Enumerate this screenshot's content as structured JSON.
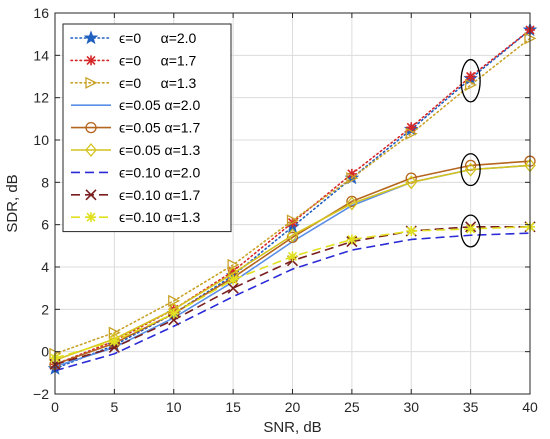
{
  "chart_data": {
    "type": "line",
    "title": "",
    "xlabel": "SNR, dB",
    "ylabel": "SDR, dB",
    "xlim": [
      0,
      40
    ],
    "ylim": [
      -2,
      16
    ],
    "x_ticks": [
      0,
      5,
      10,
      15,
      20,
      25,
      30,
      35,
      40
    ],
    "y_ticks": [
      -2,
      0,
      2,
      4,
      6,
      8,
      10,
      12,
      14,
      16
    ],
    "x_tick_labels": [
      "0",
      "5",
      "10",
      "15",
      "20",
      "25",
      "30",
      "35",
      "40"
    ],
    "y_tick_labels": [
      "−2",
      "0",
      "2",
      "4",
      "6",
      "8",
      "10",
      "12",
      "14",
      "16"
    ],
    "grid": true,
    "legend_position": "top-left",
    "x": [
      0,
      5,
      10,
      15,
      20,
      25,
      30,
      35,
      40
    ],
    "series": [
      {
        "name": "ϵ=0     α=2.0",
        "color": "#1f5fbf",
        "line": "dotted",
        "marker": "star",
        "values": [
          -0.8,
          0.3,
          1.8,
          3.6,
          5.9,
          8.2,
          10.5,
          12.9,
          15.2
        ]
      },
      {
        "name": "ϵ=0     α=1.7",
        "color": "#d62728",
        "line": "dotted",
        "marker": "asterisk",
        "values": [
          -0.6,
          0.5,
          2.0,
          3.8,
          6.1,
          8.4,
          10.6,
          13.0,
          15.2
        ]
      },
      {
        "name": "ϵ=0     α=1.3",
        "color": "#c9a227",
        "line": "dotted",
        "marker": "triangle-right",
        "values": [
          -0.1,
          0.9,
          2.4,
          4.1,
          6.2,
          8.2,
          10.3,
          12.6,
          14.8
        ]
      },
      {
        "name": "ϵ=0.05 α=2.0",
        "color": "#5b8ee6",
        "line": "solid",
        "marker": "none",
        "values": [
          -0.7,
          0.2,
          1.6,
          3.3,
          5.2,
          6.9,
          8.0,
          8.6,
          8.8
        ]
      },
      {
        "name": "ϵ=0.05 α=1.7",
        "color": "#b5651d",
        "line": "solid",
        "marker": "circle",
        "values": [
          -0.6,
          0.4,
          1.8,
          3.5,
          5.4,
          7.1,
          8.2,
          8.8,
          9.0
        ]
      },
      {
        "name": "ϵ=0.05 α=1.3",
        "color": "#d4c31e",
        "line": "solid",
        "marker": "diamond",
        "values": [
          -0.4,
          0.6,
          2.0,
          3.7,
          5.5,
          7.0,
          8.0,
          8.6,
          8.8
        ]
      },
      {
        "name": "ϵ=0.10 α=2.0",
        "color": "#2a2ad6",
        "line": "dashed",
        "marker": "none",
        "values": [
          -0.9,
          -0.1,
          1.2,
          2.6,
          3.9,
          4.8,
          5.3,
          5.5,
          5.6
        ]
      },
      {
        "name": "ϵ=0.10 α=1.7",
        "color": "#7a1f1f",
        "line": "dashed",
        "marker": "x",
        "values": [
          -0.6,
          0.2,
          1.5,
          3.0,
          4.3,
          5.2,
          5.7,
          5.9,
          5.9
        ]
      },
      {
        "name": "ϵ=0.10 α=1.3",
        "color": "#e0e020",
        "line": "dashed",
        "marker": "asterisk",
        "values": [
          -0.3,
          0.5,
          1.8,
          3.4,
          4.5,
          5.3,
          5.7,
          5.8,
          5.9
        ]
      }
    ],
    "annotations": [
      {
        "shape": "ellipse",
        "x": 35,
        "y": 12.8,
        "rx_data": 0.8,
        "ry_data": 1.0
      },
      {
        "shape": "ellipse",
        "x": 35,
        "y": 8.6,
        "rx_data": 0.8,
        "ry_data": 0.75
      },
      {
        "shape": "ellipse",
        "x": 35,
        "y": 5.7,
        "rx_data": 0.8,
        "ry_data": 0.75
      }
    ]
  }
}
